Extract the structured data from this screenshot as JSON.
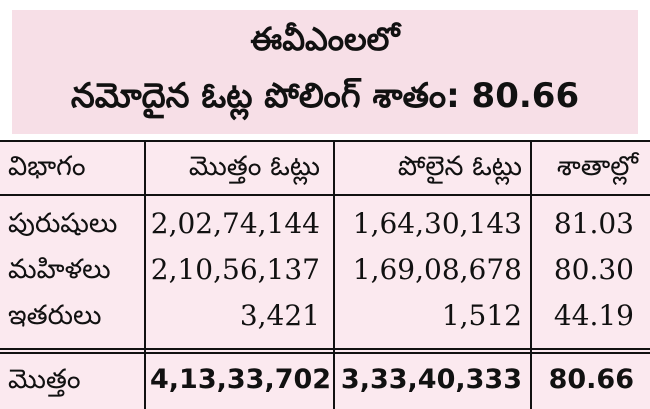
{
  "title": {
    "line1": "ఈవీఎంలలో",
    "line2": "నమోదైన ఓట్ల పోలింగ్ శాతం: 80.66"
  },
  "table": {
    "headers": [
      "విభాగం",
      "మొత్తం ఓట్లు",
      "పోలైన ఓట్లు",
      "శాతాల్లో"
    ],
    "rows": [
      [
        "పురుషులు",
        "2,02,74,144",
        "1,64,30,143",
        "81.03"
      ],
      [
        "మహిళలు",
        "2,10,56,137",
        "1,69,08,678",
        "80.30"
      ],
      [
        "ఇతరులు",
        "3,421",
        "1,512",
        "44.19"
      ]
    ],
    "total": [
      "మొత్తం",
      "4,13,33,702",
      "3,33,40,333",
      "80.66"
    ]
  },
  "colors": {
    "header_bg": "#f7dfe7",
    "table_bg": "#fbe9ef",
    "rule": "#111111"
  }
}
